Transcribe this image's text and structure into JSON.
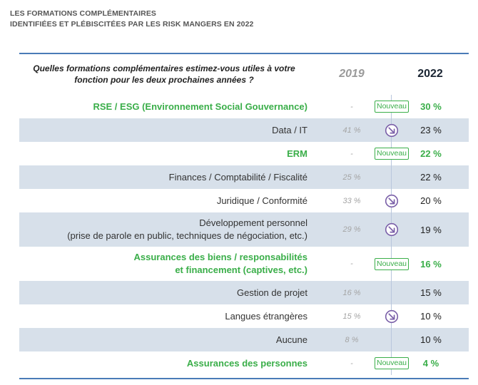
{
  "header": {
    "line1": "LES FORMATIONS COMPLÉMENTAIRES",
    "line2": "IDENTIFIÉES ET PLÉBISCITÉES PAR LES RISK MANGERS EN 2022"
  },
  "table": {
    "question_line1": "Quelles formations complémentaires estimez-vous utiles à votre",
    "question_line2": "fonction pour les deux prochaines années ?",
    "col_2019": "2019",
    "col_2022": "2022",
    "rows": [
      {
        "label": [
          "RSE / ESG (Environnement Social Gouvernance)"
        ],
        "v2019": "-",
        "trend": "nouveau",
        "v2022": "30 %",
        "highlight": true,
        "shaded": false
      },
      {
        "label": [
          "Data / IT"
        ],
        "v2019": "41 %",
        "trend": "down",
        "v2022": "23 %",
        "highlight": false,
        "shaded": true
      },
      {
        "label": [
          "ERM"
        ],
        "v2019": "-",
        "trend": "nouveau",
        "v2022": "22 %",
        "highlight": true,
        "shaded": false
      },
      {
        "label": [
          "Finances / Comptabilité / Fiscalité"
        ],
        "v2019": "25 %",
        "trend": "line",
        "v2022": "22 %",
        "highlight": false,
        "shaded": true
      },
      {
        "label": [
          "Juridique / Conformité"
        ],
        "v2019": "33 %",
        "trend": "down",
        "v2022": "20 %",
        "highlight": false,
        "shaded": false
      },
      {
        "label": [
          "Développement personnel",
          "(prise de parole en public, techniques de négociation, etc.)"
        ],
        "v2019": "29 %",
        "trend": "down",
        "v2022": "19 %",
        "highlight": false,
        "shaded": true
      },
      {
        "label": [
          "Assurances des biens / responsabilités",
          "et financement (captives, etc.)"
        ],
        "v2019": "-",
        "trend": "nouveau",
        "v2022": "16 %",
        "highlight": true,
        "shaded": false
      },
      {
        "label": [
          "Gestion de projet"
        ],
        "v2019": "16 %",
        "trend": "line",
        "v2022": "15 %",
        "highlight": false,
        "shaded": true
      },
      {
        "label": [
          "Langues étrangères"
        ],
        "v2019": "15 %",
        "trend": "down",
        "v2022": "10 %",
        "highlight": false,
        "shaded": false
      },
      {
        "label": [
          "Aucune"
        ],
        "v2019": "8 %",
        "trend": "line",
        "v2022": "10 %",
        "highlight": false,
        "shaded": true
      },
      {
        "label": [
          "Assurances des personnes"
        ],
        "v2019": "-",
        "trend": "nouveau",
        "v2022": "4 %",
        "highlight": true,
        "shaded": false
      }
    ],
    "nouveau_label": "Nouveau"
  },
  "colors": {
    "green": "#3aae49",
    "shade": "#d7e0ea",
    "rule": "#4a7bb7",
    "arrow": "#7a5fa8"
  }
}
